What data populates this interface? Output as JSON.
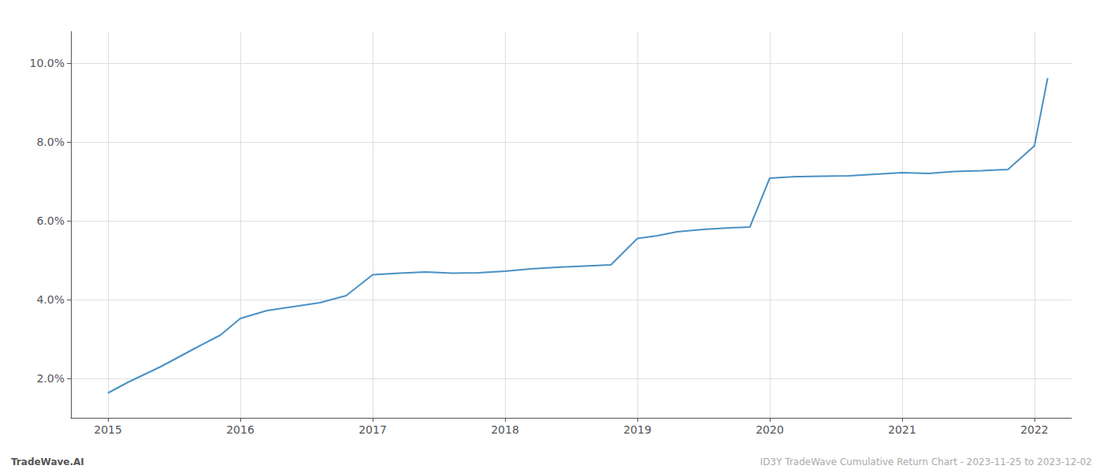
{
  "chart_data": {
    "type": "line",
    "x": [
      2015.0,
      2015.15,
      2015.4,
      2015.65,
      2015.85,
      2016.0,
      2016.2,
      2016.4,
      2016.6,
      2016.8,
      2017.0,
      2017.2,
      2017.4,
      2017.6,
      2017.8,
      2018.0,
      2018.2,
      2018.4,
      2018.6,
      2018.8,
      2019.0,
      2019.15,
      2019.3,
      2019.5,
      2019.7,
      2019.85,
      2020.0,
      2020.2,
      2020.4,
      2020.6,
      2020.8,
      2021.0,
      2021.2,
      2021.4,
      2021.6,
      2021.8,
      2022.0,
      2022.1
    ],
    "values": [
      1.63,
      1.9,
      2.3,
      2.75,
      3.1,
      3.52,
      3.72,
      3.82,
      3.92,
      4.1,
      4.63,
      4.67,
      4.7,
      4.67,
      4.68,
      4.72,
      4.78,
      4.82,
      4.85,
      4.88,
      5.55,
      5.62,
      5.72,
      5.78,
      5.82,
      5.84,
      7.08,
      7.12,
      7.13,
      7.14,
      7.18,
      7.22,
      7.2,
      7.25,
      7.27,
      7.3,
      7.9,
      9.62
    ],
    "color": "#4a90c4",
    "xlim": [
      2014.72,
      2022.28
    ],
    "ylim": [
      1.0,
      10.8
    ],
    "xticks": [
      2015,
      2016,
      2017,
      2018,
      2019,
      2020,
      2021,
      2022
    ],
    "yticks": [
      {
        "value": 2.0,
        "label": "2.0%"
      },
      {
        "value": 4.0,
        "label": "4.0%"
      },
      {
        "value": 6.0,
        "label": "6.0%"
      },
      {
        "value": 8.0,
        "label": "8.0%"
      },
      {
        "value": 10.0,
        "label": "10.0%"
      }
    ],
    "grid": true,
    "annotations": [
      "TradeWave.AI",
      "ID3Y TradeWave Cumulative Return Chart - 2023-11-25 to 2023-12-02"
    ]
  }
}
